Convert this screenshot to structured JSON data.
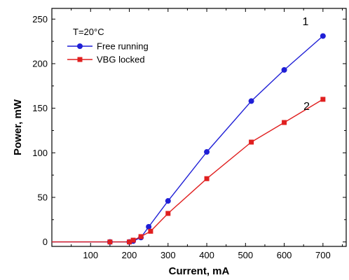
{
  "chart_data": {
    "type": "line",
    "title": "",
    "xlabel": "Current, mA",
    "ylabel": "Power, mW",
    "xlim": [
      0,
      760
    ],
    "ylim": [
      -5,
      262
    ],
    "x_ticks": [
      100,
      200,
      300,
      400,
      500,
      600,
      700
    ],
    "y_ticks": [
      0,
      50,
      100,
      150,
      200,
      250
    ],
    "grid": false,
    "legend": {
      "placement": "top-left",
      "heading": "T=20°C"
    },
    "series": [
      {
        "name": "Free running",
        "color": "#1f1fd6",
        "marker": "circle",
        "x": [
          0,
          150,
          200,
          210,
          230,
          250,
          300,
          400,
          515,
          600,
          700
        ],
        "y": [
          0,
          0,
          0,
          1,
          5,
          17,
          46,
          101,
          158,
          193,
          231
        ]
      },
      {
        "name": "VBG locked",
        "color": "#e01f1f",
        "marker": "square",
        "x": [
          0,
          150,
          200,
          210,
          230,
          255,
          300,
          400,
          515,
          600,
          700
        ],
        "y": [
          0,
          0,
          0,
          2,
          6,
          12,
          32,
          71,
          112,
          134,
          160
        ]
      }
    ],
    "annotations": [
      {
        "text": "1",
        "x": 655,
        "y": 243
      },
      {
        "text": "2",
        "x": 658,
        "y": 148
      }
    ]
  }
}
